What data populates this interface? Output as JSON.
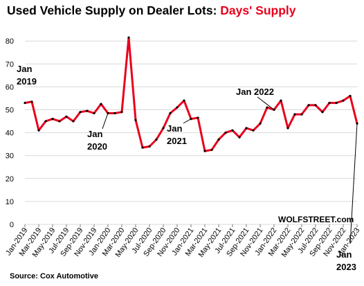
{
  "title": {
    "main": "Used Vehicle Supply on Dealer Lots:",
    "highlight": "Days' Supply",
    "colors": {
      "main": "#000000",
      "highlight": "#e8001c"
    }
  },
  "source": "Source: Cox Automotive",
  "brand": "WOLFSTREET.com",
  "annotations": [
    {
      "text": [
        "Jan",
        "2019"
      ],
      "index": 0
    },
    {
      "text": [
        "Jan",
        "2020"
      ],
      "index": 12
    },
    {
      "text": [
        "Jan",
        "2021"
      ],
      "index": 24
    },
    {
      "text": [
        "Jan 2022"
      ],
      "index": 36
    },
    {
      "text": [
        "Jan",
        "2023"
      ],
      "index": 48
    }
  ],
  "chart_data": {
    "type": "line",
    "title": "Used Vehicle Supply on Dealer Lots: Days' Supply",
    "ylim": [
      0,
      85
    ],
    "yticks": [
      0,
      10,
      20,
      30,
      40,
      50,
      60,
      70,
      80
    ],
    "grid": true,
    "line_color": "#e8001c",
    "marker_color": "#000000",
    "x_tick_labels": [
      "Jan-2019",
      "Mar-2019",
      "May-2019",
      "Jul-2019",
      "Sep-2019",
      "Nov-2019",
      "Jan-2020",
      "Mar-2020",
      "May-2020",
      "Jul-2020",
      "Sep-2020",
      "Nov-2020",
      "Jan-2021",
      "Mar-2021",
      "May-2021",
      "Jul-2021",
      "Sep-2021",
      "Nov-2021",
      "Jan-2022",
      "Mar-2022",
      "May-2022",
      "Jul-2022",
      "Sep-2022",
      "Nov-2022",
      "Jan-2023"
    ],
    "x": [
      "Jan-2019",
      "Feb-2019",
      "Mar-2019",
      "Apr-2019",
      "May-2019",
      "Jun-2019",
      "Jul-2019",
      "Aug-2019",
      "Sep-2019",
      "Oct-2019",
      "Nov-2019",
      "Dec-2019",
      "Jan-2020",
      "Feb-2020",
      "Mar-2020",
      "Apr-2020",
      "May-2020",
      "Jun-2020",
      "Jul-2020",
      "Aug-2020",
      "Sep-2020",
      "Oct-2020",
      "Nov-2020",
      "Dec-2020",
      "Jan-2021",
      "Feb-2021",
      "Mar-2021",
      "Apr-2021",
      "May-2021",
      "Jun-2021",
      "Jul-2021",
      "Aug-2021",
      "Sep-2021",
      "Oct-2021",
      "Nov-2021",
      "Dec-2021",
      "Jan-2022",
      "Feb-2022",
      "Mar-2022",
      "Apr-2022",
      "May-2022",
      "Jun-2022",
      "Jul-2022",
      "Aug-2022",
      "Sep-2022",
      "Oct-2022",
      "Nov-2022",
      "Dec-2022",
      "Jan-2023"
    ],
    "values": [
      53,
      53.5,
      41,
      45,
      46,
      45,
      47,
      45,
      49,
      49.5,
      48.5,
      52.5,
      48.5,
      48.5,
      49,
      81.5,
      45.5,
      33.5,
      34,
      37,
      42,
      48.5,
      51,
      54,
      46,
      46.5,
      32,
      32.5,
      37,
      40,
      41,
      38,
      42,
      41,
      44,
      51,
      50,
      54,
      42,
      48,
      48,
      52,
      52,
      49,
      53,
      53,
      54,
      56,
      44
    ]
  }
}
